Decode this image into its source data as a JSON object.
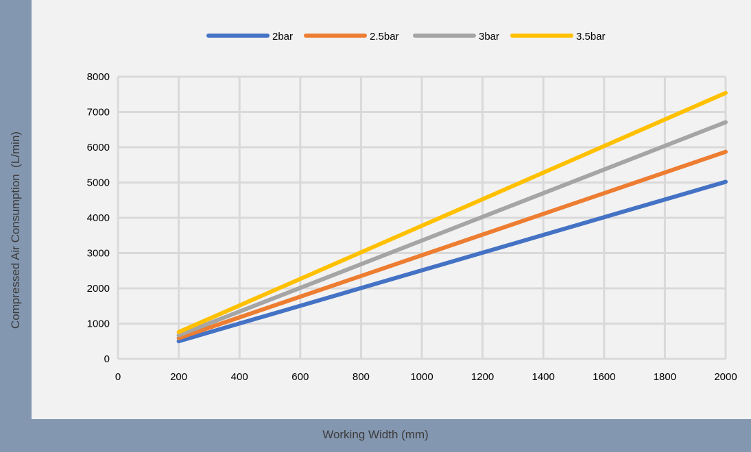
{
  "chart_data": {
    "type": "line",
    "title": "",
    "xlabel": "Working Width (mm)",
    "ylabel": "Compressed Air Consumption  (L/min)",
    "xlim": [
      0,
      2000
    ],
    "ylim": [
      0,
      8000
    ],
    "xticks": [
      0,
      200,
      400,
      600,
      800,
      1000,
      1200,
      1400,
      1600,
      1800,
      2000
    ],
    "yticks": [
      0,
      1000,
      2000,
      3000,
      4000,
      5000,
      6000,
      7000,
      8000
    ],
    "grid": true,
    "legend_position": "top",
    "x": [
      200,
      2000
    ],
    "series": [
      {
        "name": "2bar",
        "color": "#4472c4",
        "values": [
          500,
          5020
        ]
      },
      {
        "name": "2.5bar",
        "color": "#ed7d31",
        "values": [
          590,
          5870
        ]
      },
      {
        "name": "3bar",
        "color": "#a5a5a5",
        "values": [
          670,
          6710
        ]
      },
      {
        "name": "3.5bar",
        "color": "#ffc000",
        "values": [
          760,
          7540
        ]
      }
    ]
  }
}
